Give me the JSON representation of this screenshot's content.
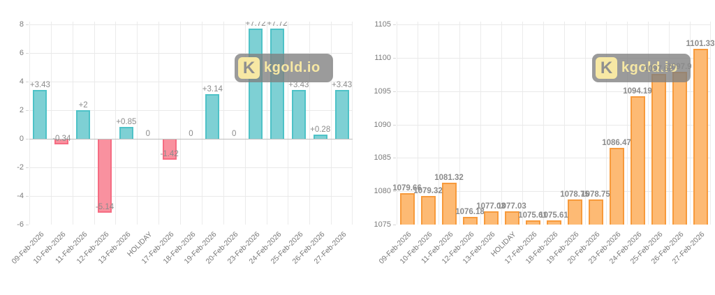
{
  "watermark": {
    "logo_letter": "K",
    "text": "kgold.io"
  },
  "chart_data": [
    {
      "type": "bar",
      "name": "daily-change",
      "categories": [
        "09-Feb-2026",
        "10-Feb-2026",
        "11-Feb-2026",
        "12-Feb-2026",
        "13-Feb-2026",
        "HOLIDAY",
        "17-Feb-2026",
        "18-Feb-2026",
        "19-Feb-2026",
        "20-Feb-2026",
        "23-Feb-2026",
        "24-Feb-2026",
        "25-Feb-2026",
        "26-Feb-2026",
        "27-Feb-2026"
      ],
      "values": [
        3.43,
        -0.34,
        2,
        -5.14,
        0.85,
        0,
        -1.42,
        0,
        3.14,
        0,
        7.72,
        7.72,
        3.43,
        0.28,
        3.43
      ],
      "value_labels": [
        "+3.43",
        "-0.34",
        "+2",
        "-5.14",
        "+0.85",
        "0",
        "-1.42",
        "0",
        "+3.14",
        "0",
        "+7.72",
        "+7.72",
        "+3.43",
        "+0.28",
        "+3.43"
      ],
      "ylim": [
        -6,
        8
      ],
      "yticks": [
        8,
        6,
        4,
        2,
        0,
        -2,
        -4,
        -6
      ],
      "zero_line": 0,
      "grid": true,
      "legend": "none",
      "colors": {
        "positive_fill": "#7ed0d4",
        "positive_border": "#4ec2c7",
        "negative_fill": "#f9919f",
        "negative_border": "#f56c82"
      }
    },
    {
      "type": "bar",
      "name": "price-history",
      "categories": [
        "09-Feb-2026",
        "10-Feb-2026",
        "11-Feb-2026",
        "12-Feb-2026",
        "13-Feb-2026",
        "HOLIDAY",
        "17-Feb-2026",
        "18-Feb-2026",
        "19-Feb-2026",
        "20-Feb-2026",
        "23-Feb-2026",
        "24-Feb-2026",
        "25-Feb-2026",
        "26-Feb-2026",
        "27-Feb-2026"
      ],
      "values": [
        1079.66,
        1079.32,
        1081.32,
        1076.18,
        1077.03,
        1077.03,
        1075.61,
        1075.61,
        1078.75,
        1078.75,
        1086.47,
        1094.19,
        1097.62,
        1097.9,
        1101.33
      ],
      "value_labels": [
        "1079.66",
        "1079.32",
        "1081.32",
        "1076.18",
        "1077.03",
        "1077.03",
        "1075.61",
        "1075.61",
        "1078.75",
        "1078.75",
        "1086.47",
        "1094.19",
        "1097.62",
        "1097.9",
        "1101.33"
      ],
      "ylim": [
        1075,
        1105
      ],
      "yticks": [
        1105,
        1100,
        1095,
        1090,
        1085,
        1080,
        1075
      ],
      "baseline": 1075,
      "grid": true,
      "legend": "none",
      "colors": {
        "fill": "#fdba74",
        "border": "#f79a3b"
      }
    }
  ]
}
